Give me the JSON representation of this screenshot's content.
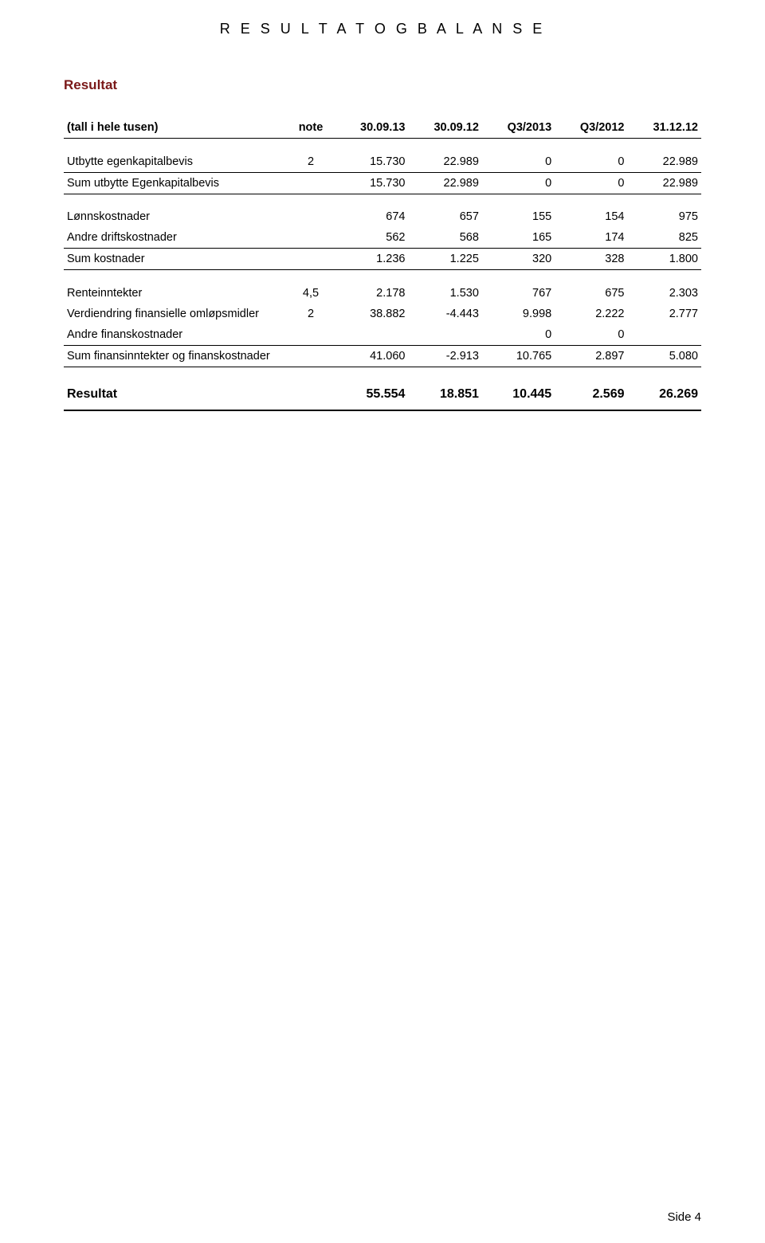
{
  "page": {
    "header_title": "R E S U L T A T  O G  B A L A N S E",
    "section_title": "Resultat",
    "footer": "Side 4"
  },
  "columns": {
    "label": "(tall i hele tusen)",
    "note": "note",
    "c1": "30.09.13",
    "c2": "30.09.12",
    "c3": "Q3/2013",
    "c4": "Q3/2012",
    "c5": "31.12.12"
  },
  "rows": {
    "r1": {
      "label": "Utbytte egenkapitalbevis",
      "note": "2",
      "c1": "15.730",
      "c2": "22.989",
      "c3": "0",
      "c4": "0",
      "c5": "22.989"
    },
    "r2": {
      "label": "Sum utbytte Egenkapitalbevis",
      "note": "",
      "c1": "15.730",
      "c2": "22.989",
      "c3": "0",
      "c4": "0",
      "c5": "22.989"
    },
    "r3": {
      "label": "Lønnskostnader",
      "note": "",
      "c1": "674",
      "c2": "657",
      "c3": "155",
      "c4": "154",
      "c5": "975"
    },
    "r4": {
      "label": "Andre driftskostnader",
      "note": "",
      "c1": "562",
      "c2": "568",
      "c3": "165",
      "c4": "174",
      "c5": "825"
    },
    "r5": {
      "label": "Sum kostnader",
      "note": "",
      "c1": "1.236",
      "c2": "1.225",
      "c3": "320",
      "c4": "328",
      "c5": "1.800"
    },
    "r6": {
      "label": "Renteinntekter",
      "note": "4,5",
      "c1": "2.178",
      "c2": "1.530",
      "c3": "767",
      "c4": "675",
      "c5": "2.303"
    },
    "r7": {
      "label": "Verdiendring finansielle omløpsmidler",
      "note": "2",
      "c1": "38.882",
      "c2": "-4.443",
      "c3": "9.998",
      "c4": "2.222",
      "c5": "2.777"
    },
    "r8": {
      "label": "Andre finanskostnader",
      "note": "",
      "c1": "",
      "c2": "",
      "c3": "0",
      "c4": "0",
      "c5": ""
    },
    "r9": {
      "label": "Sum finansinntekter og finanskostnader",
      "note": "",
      "c1": "41.060",
      "c2": "-2.913",
      "c3": "10.765",
      "c4": "2.897",
      "c5": "5.080"
    },
    "r10": {
      "label": "Resultat",
      "note": "",
      "c1": "55.554",
      "c2": "18.851",
      "c3": "10.445",
      "c4": "2.569",
      "c5": "26.269"
    }
  },
  "style": {
    "background": "#ffffff",
    "text_color": "#000000",
    "accent_color": "#7a1818",
    "border_color": "#000000",
    "header_fontsize": 18,
    "section_fontsize": 17,
    "body_fontsize": 14.5,
    "result_fontsize": 16,
    "letter_spacing": 4
  }
}
